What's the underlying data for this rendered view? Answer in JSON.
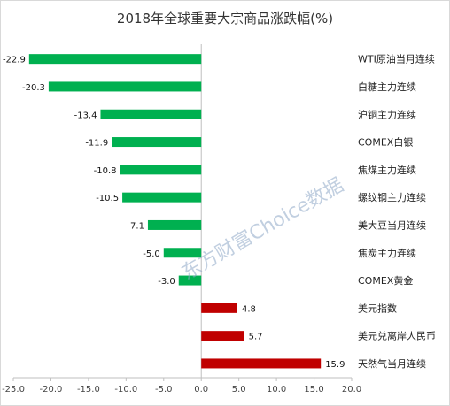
{
  "chart_data": {
    "type": "bar",
    "orientation": "horizontal",
    "title": "2018年全球重要大宗商品涨跌幅(%)",
    "categories": [
      "WTI原油当月连续",
      "白糖主力连续",
      "沪铜主力连续",
      "COMEX白银",
      "焦煤主力连续",
      "螺纹钢主力连续",
      "美大豆当月连续",
      "焦炭主力连续",
      "COMEX黄金",
      "美元指数",
      "美元兑离岸人民币",
      "天然气当月连续"
    ],
    "values": [
      -22.9,
      -20.3,
      -13.4,
      -11.9,
      -10.8,
      -10.5,
      -7.1,
      -5.0,
      -3.0,
      4.8,
      5.7,
      15.9
    ],
    "value_labels": [
      "-22.9",
      "-20.3",
      "-13.4",
      "-11.9",
      "-10.8",
      "-10.5",
      "-7.1",
      "-5.0",
      "-3.0",
      "4.8",
      "5.7",
      "15.9"
    ],
    "xlim": [
      -25,
      20
    ],
    "xticks": [
      -25,
      -20,
      -15,
      -10,
      -5,
      0,
      5,
      10,
      15,
      20
    ],
    "xtick_labels": [
      "-25.0",
      "-20.0",
      "-15.0",
      "-10.0",
      "-5.0",
      "0.0",
      "5.0",
      "10.0",
      "15.0",
      "20.0"
    ],
    "xlabel": "",
    "ylabel": "",
    "grid": false,
    "legend": "none",
    "colors": {
      "negative": "#00b050",
      "positive": "#c00000",
      "axis": "#bfbfbf"
    },
    "watermark": "东方财富Choice数据"
  }
}
